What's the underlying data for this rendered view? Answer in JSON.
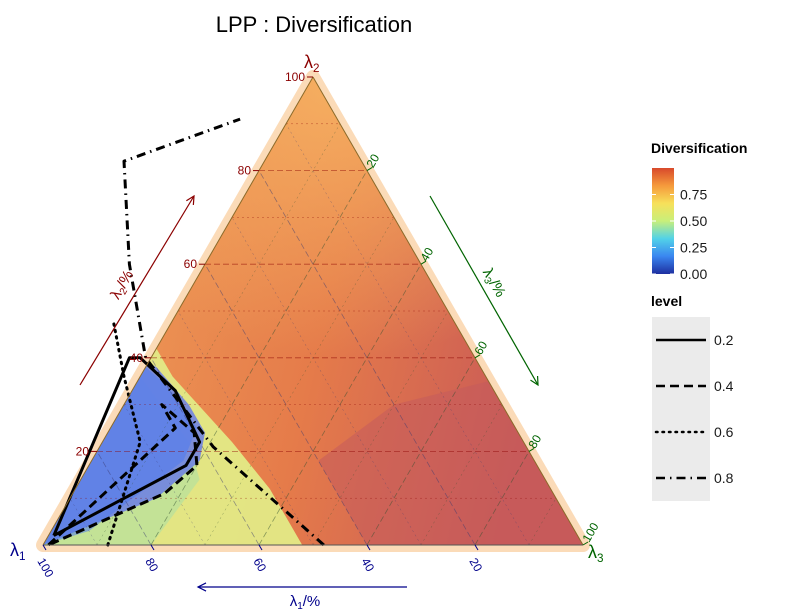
{
  "chart_data": {
    "type": "ternary-contour",
    "title": "LPP : Diversification",
    "vertex_labels": {
      "left": "λ",
      "left_sub": "1",
      "top": "λ",
      "top_sub": "2",
      "right": "λ",
      "right_sub": "3"
    },
    "axis_labels": {
      "lambda1": {
        "main": "λ",
        "sub": "1",
        "unit": "/%"
      },
      "lambda2": {
        "main": "λ",
        "sub": "2",
        "unit": "/%"
      },
      "lambda3": {
        "main": "λ",
        "sub": "3",
        "unit": "/%"
      }
    },
    "ticks": {
      "lambda1": [
        "100",
        "80",
        "60",
        "40",
        "20"
      ],
      "lambda2": [
        "20",
        "40",
        "60",
        "80",
        "100"
      ],
      "lambda3": [
        "20",
        "40",
        "60",
        "80",
        "100"
      ]
    },
    "colors": {
      "lambda1": "#00008b",
      "lambda2": "#8b0000",
      "lambda3": "#006400"
    },
    "legend_fill": {
      "title": "Diversification",
      "ticks": [
        "0.75",
        "0.50",
        "0.25",
        "0.00"
      ],
      "tick_values": [
        0.75,
        0.5,
        0.25,
        0.0
      ],
      "range": [
        0,
        1
      ],
      "colors": [
        "#1e2fa0",
        "#3a86f0",
        "#52d2e8",
        "#c8ef7a",
        "#f7e05a",
        "#f59a3c",
        "#d8492b"
      ]
    },
    "legend_level": {
      "title": "level",
      "entries": [
        {
          "label": "0.2",
          "dash": "solid"
        },
        {
          "label": "0.4",
          "dash": "dashed"
        },
        {
          "label": "0.6",
          "dash": "dotted"
        },
        {
          "label": "0.8",
          "dash": "dotdash"
        }
      ]
    },
    "contours": [
      {
        "level": "0.2",
        "points_l1_l2": [
          [
            97,
            2
          ],
          [
            64,
            40
          ],
          [
            62,
            40
          ],
          [
            59,
            33
          ],
          [
            60,
            22
          ],
          [
            65,
            17
          ],
          [
            97,
            2
          ]
        ]
      },
      {
        "level": "0.4",
        "points_l1_l2": [
          [
            99,
            0
          ],
          [
            63,
            25
          ],
          [
            63,
            30
          ],
          [
            60,
            24
          ],
          [
            63,
            17
          ],
          [
            72,
            11
          ],
          [
            99,
            0
          ]
        ]
      },
      {
        "level": "0.6",
        "points_l1_l2": [
          [
            88,
            0
          ],
          [
            71,
            22
          ],
          [
            67,
            36
          ],
          [
            63,
            48
          ]
        ]
      },
      {
        "level": "0.8",
        "points_l1_l2": [
          [
            48,
            0
          ],
          [
            58,
            21
          ],
          [
            61,
            40
          ],
          [
            54,
            60
          ],
          [
            44,
            82
          ],
          [
            18,
            91
          ]
        ]
      }
    ]
  }
}
